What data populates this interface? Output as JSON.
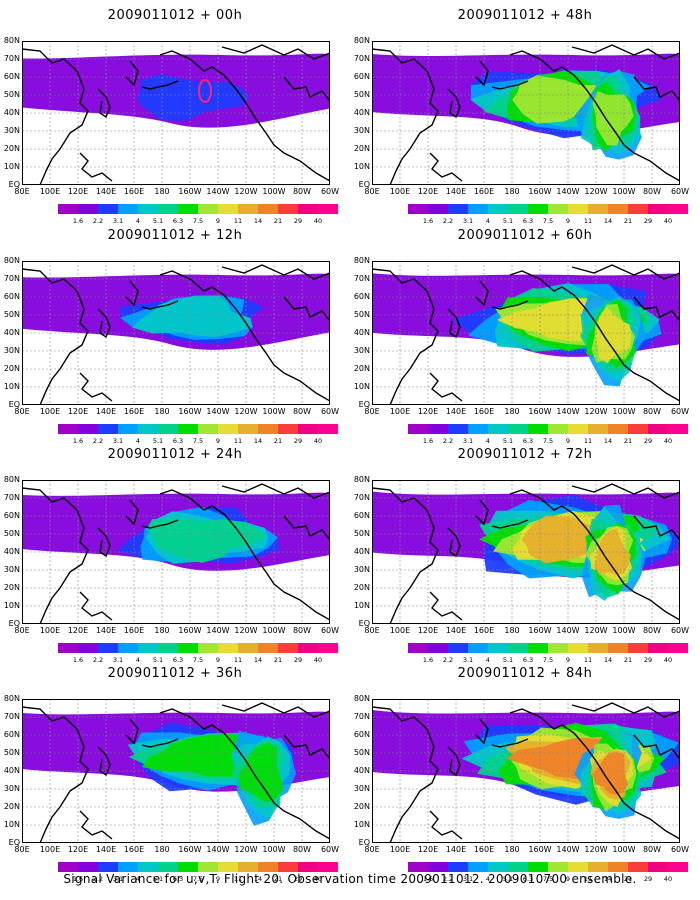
{
  "caption": "Signal Variance for u,v,T. Flight 20. Observation time 2009011012. 2009010700 ensemble.",
  "x_axis_labels": [
    "80E",
    "100E",
    "120E",
    "140E",
    "160E",
    "180",
    "160W",
    "140W",
    "120W",
    "100W",
    "80W",
    "60W"
  ],
  "y_axis_labels": [
    "80N",
    "70N",
    "60N",
    "50N",
    "40N",
    "30N",
    "20N",
    "10N",
    "EQ"
  ],
  "colorbar": {
    "labels": [
      "1.6",
      "2.2",
      "3.1",
      "4",
      "5.1",
      "6.3",
      "7.5",
      "9",
      "11",
      "14",
      "21",
      "29",
      "40"
    ],
    "colors": [
      "#a000c8",
      "#8200dc",
      "#1e3cff",
      "#00a0ff",
      "#00c8c8",
      "#00d28c",
      "#00dc00",
      "#a0e632",
      "#e6dc32",
      "#e6af2d",
      "#f08228",
      "#fa3c3c",
      "#f00082"
    ]
  },
  "panels": [
    {
      "title": "2009011012 + 00h",
      "intensity": 0.25
    },
    {
      "title": "2009011012 + 48h",
      "intensity": 0.7
    },
    {
      "title": "2009011012 + 12h",
      "intensity": 0.38
    },
    {
      "title": "2009011012 + 60h",
      "intensity": 0.78
    },
    {
      "title": "2009011012 + 24h",
      "intensity": 0.5
    },
    {
      "title": "2009011012 + 72h",
      "intensity": 0.85
    },
    {
      "title": "2009011012 + 36h",
      "intensity": 0.6
    },
    {
      "title": "2009011012 + 84h",
      "intensity": 0.9
    }
  ]
}
